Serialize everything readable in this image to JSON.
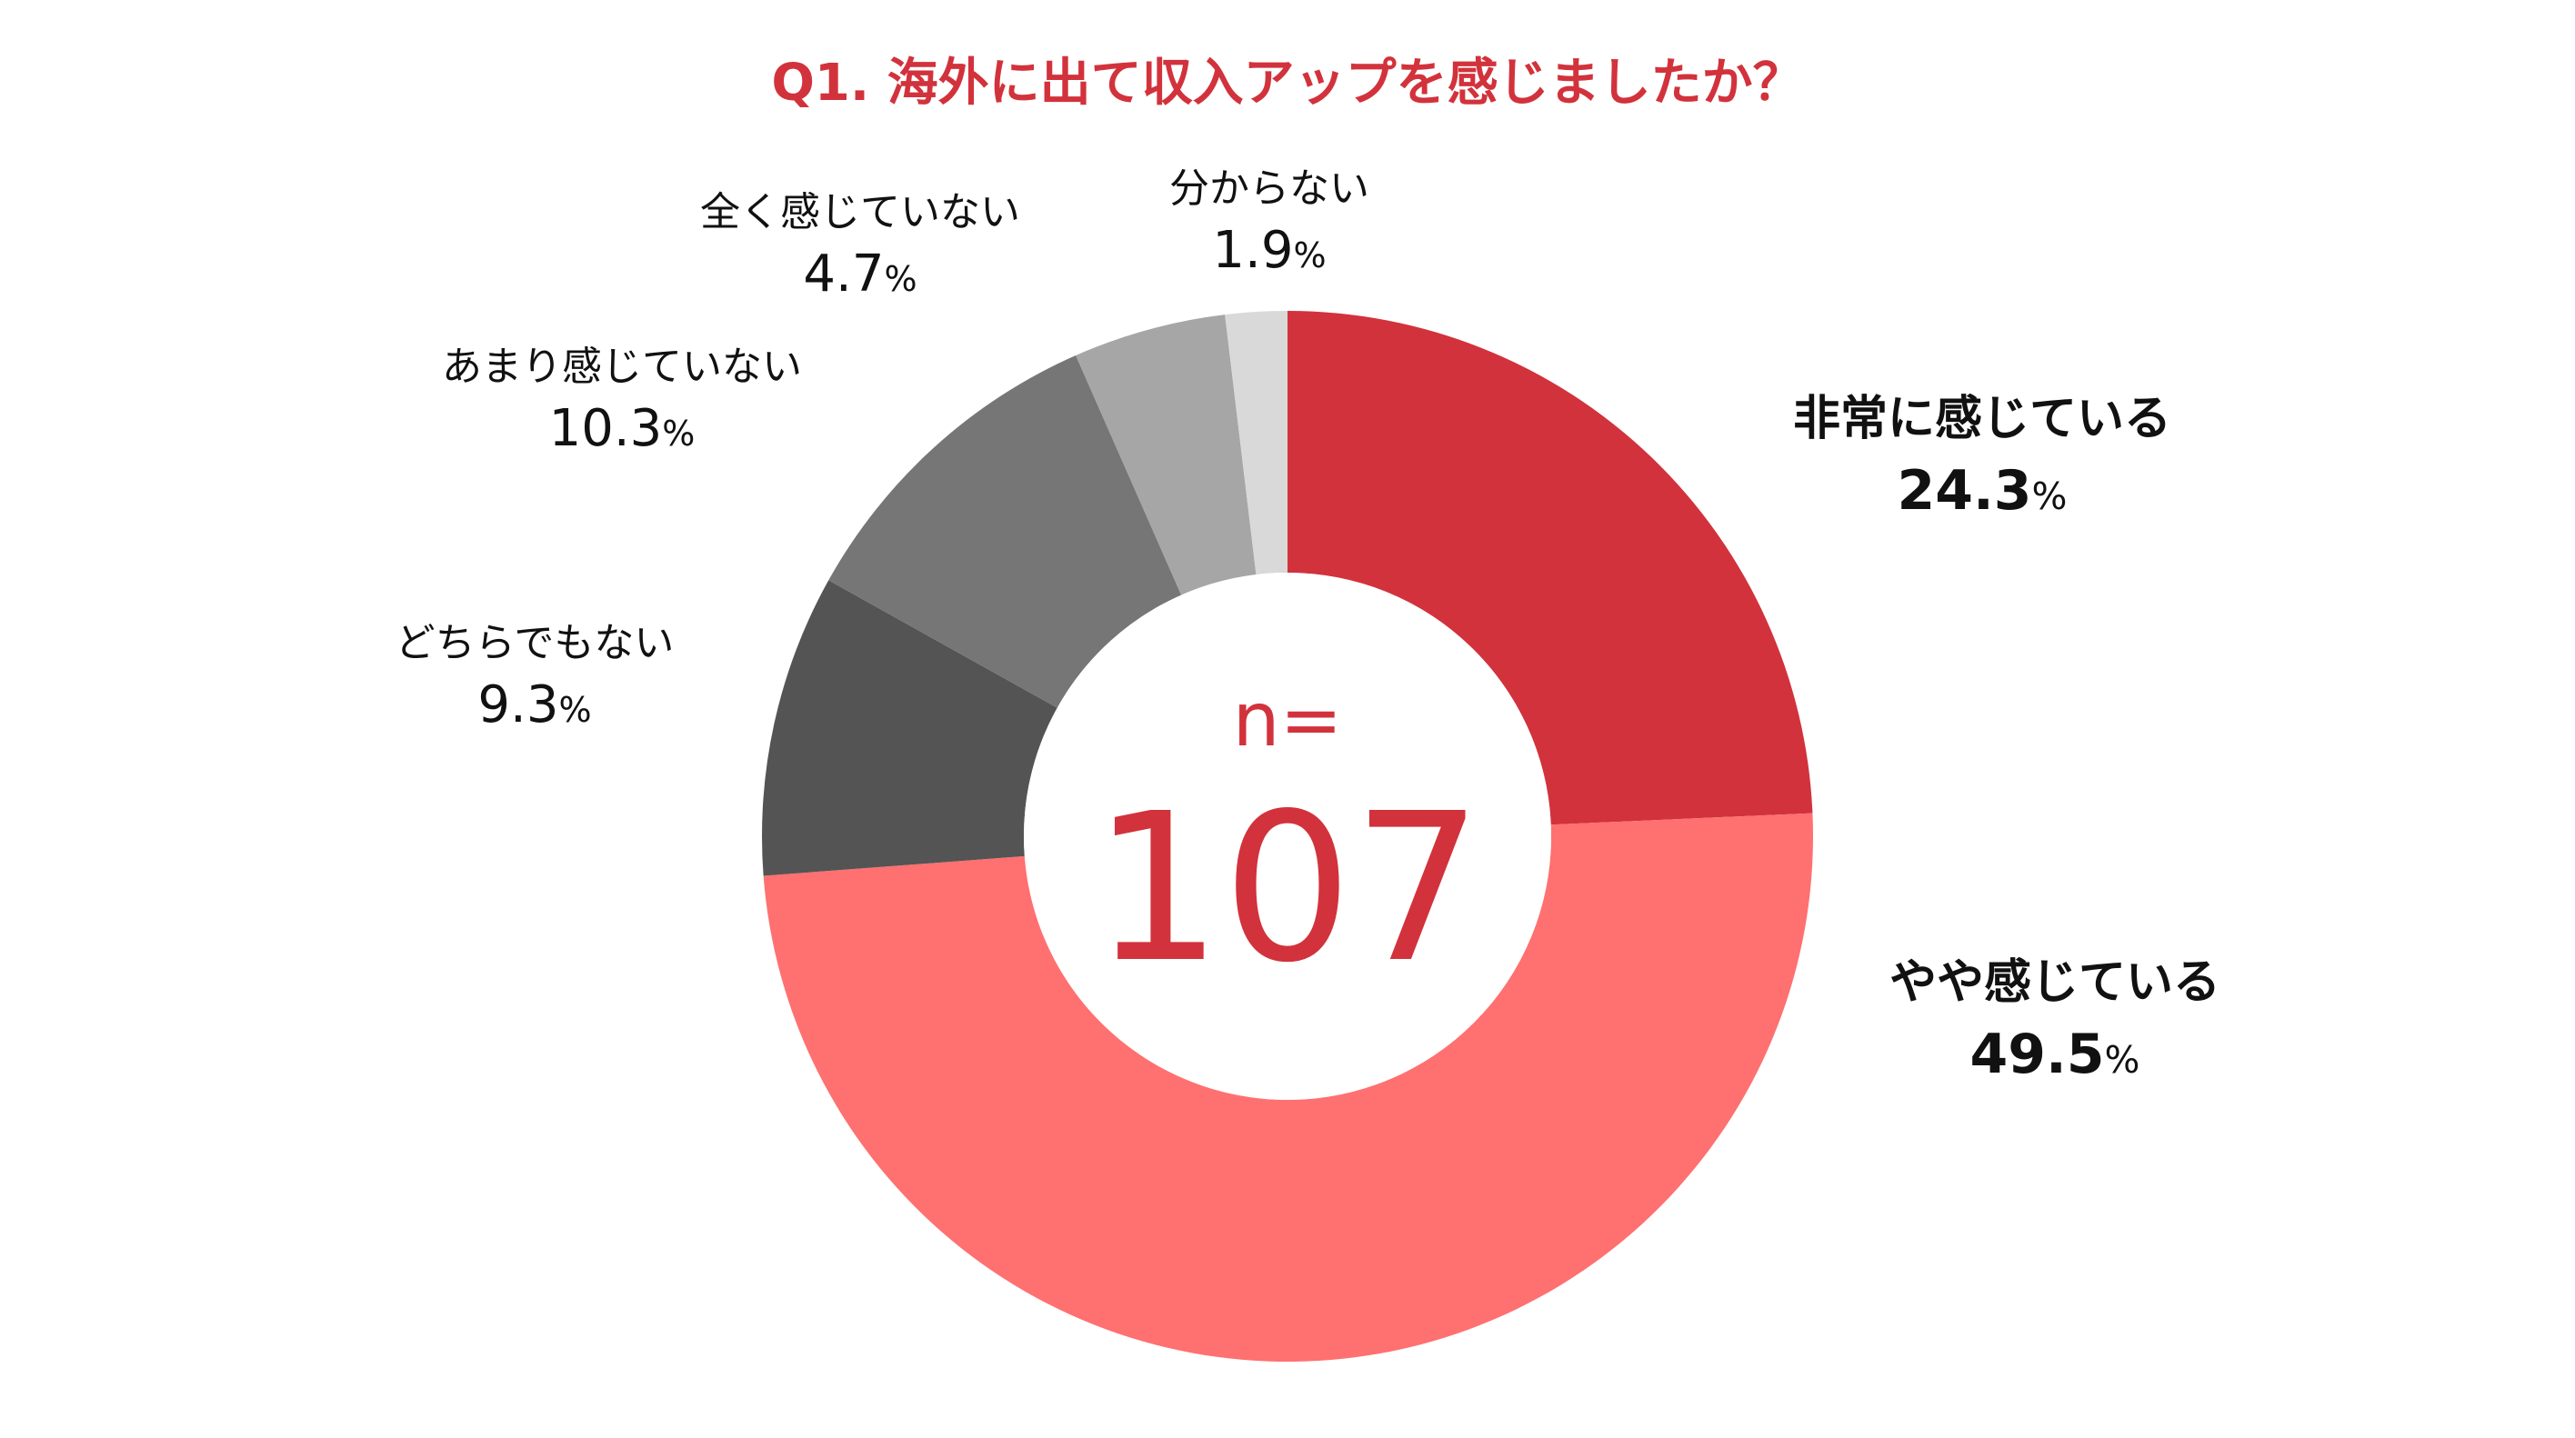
{
  "chart_data": {
    "type": "pie",
    "variant": "donut",
    "title": "Q1. 海外に出て収入アップを感じましたか？",
    "center_label": "n=",
    "center_value": "107",
    "unit": "%",
    "slices": [
      {
        "label": "非常に感じている",
        "value": 24.3,
        "display": "24.3",
        "color": "#d2323c"
      },
      {
        "label": "やや感じている",
        "value": 49.5,
        "display": "49.5",
        "color": "#ff7070"
      },
      {
        "label": "どちらでもない",
        "value": 9.3,
        "display": "9.3",
        "color": "#545454"
      },
      {
        "label": "あまり感じていない",
        "value": 10.3,
        "display": "10.3",
        "color": "#767676"
      },
      {
        "label": "全く感じていない",
        "value": 4.7,
        "display": "4.7",
        "color": "#a6a6a6"
      },
      {
        "label": "分からない",
        "value": 1.9,
        "display": "1.9",
        "color": "#d9d9d9"
      }
    ],
    "colors": {
      "title": "#d2323c",
      "center": "#d2323c",
      "text": "#111111"
    }
  }
}
